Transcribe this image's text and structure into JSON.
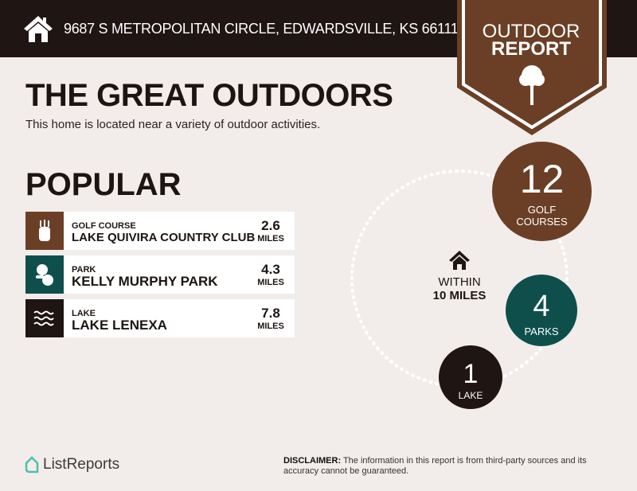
{
  "header": {
    "address": "9687 S METROPOLITAN CIRCLE, EDWARDSVILLE, KS 66111",
    "badge_line1": "OUTDOOR",
    "badge_line2": "REPORT"
  },
  "title": "THE GREAT OUTDOORS",
  "subtitle": "This home is located near a variety of outdoor activities.",
  "popular": {
    "heading": "POPULAR",
    "items": [
      {
        "category": "GOLF COURSE",
        "name": "LAKE QUIVIRA COUNTRY CLUB",
        "distance": "2.6",
        "unit": "MILES",
        "icon": "golf-bag-icon",
        "color": "#6b3f26"
      },
      {
        "category": "PARK",
        "name": "KELLY MURPHY PARK",
        "distance": "4.3",
        "unit": "MILES",
        "icon": "trees-icon",
        "color": "#0e4f4c"
      },
      {
        "category": "LAKE",
        "name": "LAKE LENEXA",
        "distance": "7.8",
        "unit": "MILES",
        "icon": "waves-icon",
        "color": "#1f1512"
      }
    ]
  },
  "summary": {
    "within_line1": "WITHIN",
    "within_line2": "10 MILES",
    "golf": {
      "count": "12",
      "label1": "GOLF",
      "label2": "COURSES",
      "color": "#6b3f26"
    },
    "parks": {
      "count": "4",
      "label": "PARKS",
      "color": "#0e4f4c"
    },
    "lakes": {
      "count": "1",
      "label": "LAKE",
      "color": "#1f1512"
    }
  },
  "footer": {
    "brand": "ListReports",
    "disclaimer_label": "DISCLAIMER:",
    "disclaimer_text": " The information in this report is from third-party sources and its accuracy cannot be guaranteed."
  }
}
